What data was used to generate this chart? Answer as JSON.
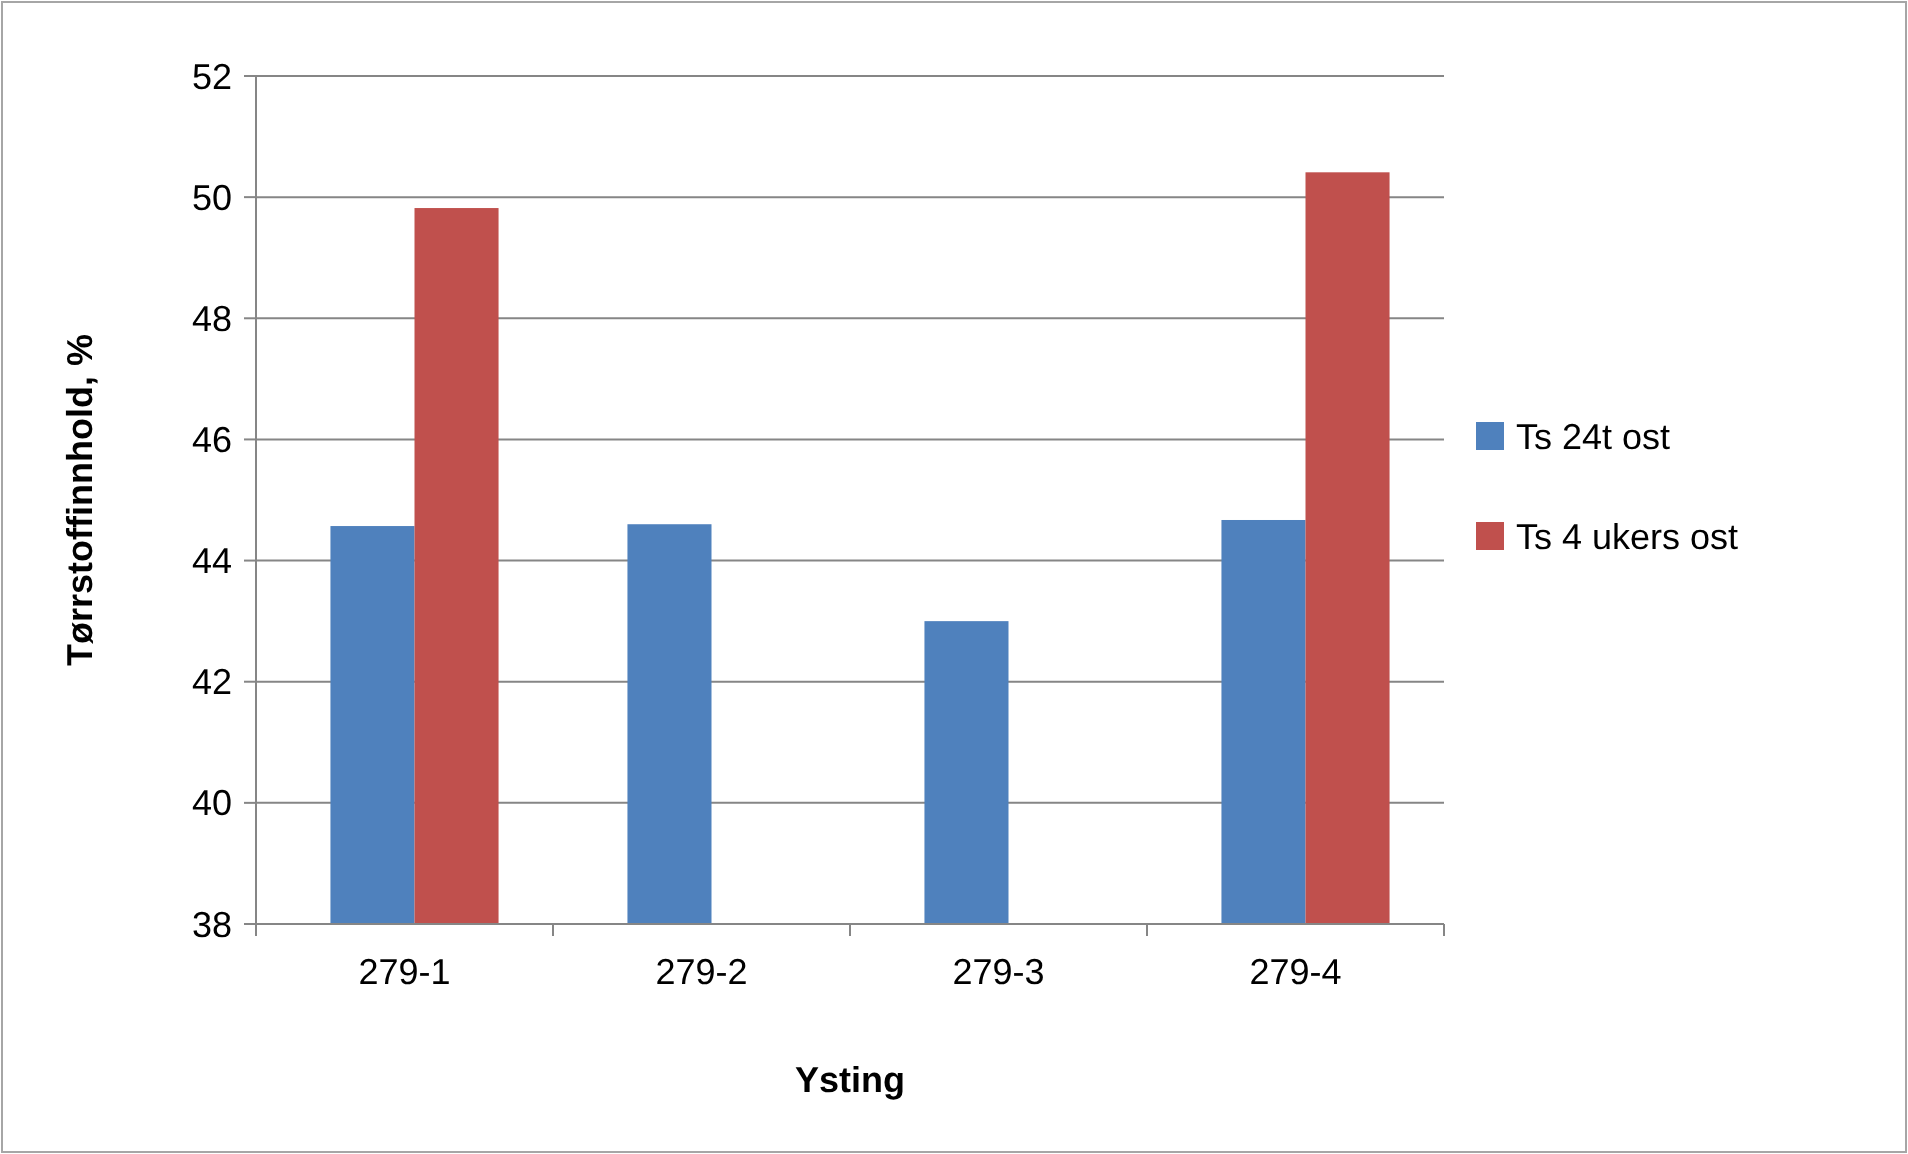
{
  "chart_data": {
    "type": "bar",
    "xlabel": "Ysting",
    "ylabel": "Tørrstoffinnhold, %",
    "categories": [
      "279-1",
      "279-2",
      "279-3",
      "279-4"
    ],
    "series": [
      {
        "name": "Ts 24t ost",
        "color": "#4f81bd",
        "values": [
          44.57,
          44.6,
          43.0,
          44.67
        ]
      },
      {
        "name": "Ts 4 ukers ost",
        "color": "#c0504d",
        "values": [
          49.82,
          null,
          null,
          50.41
        ]
      }
    ],
    "ylim": [
      38,
      52
    ],
    "yticks": [
      38,
      40,
      42,
      44,
      46,
      48,
      50,
      52
    ],
    "grid": "y",
    "legend": "right"
  }
}
